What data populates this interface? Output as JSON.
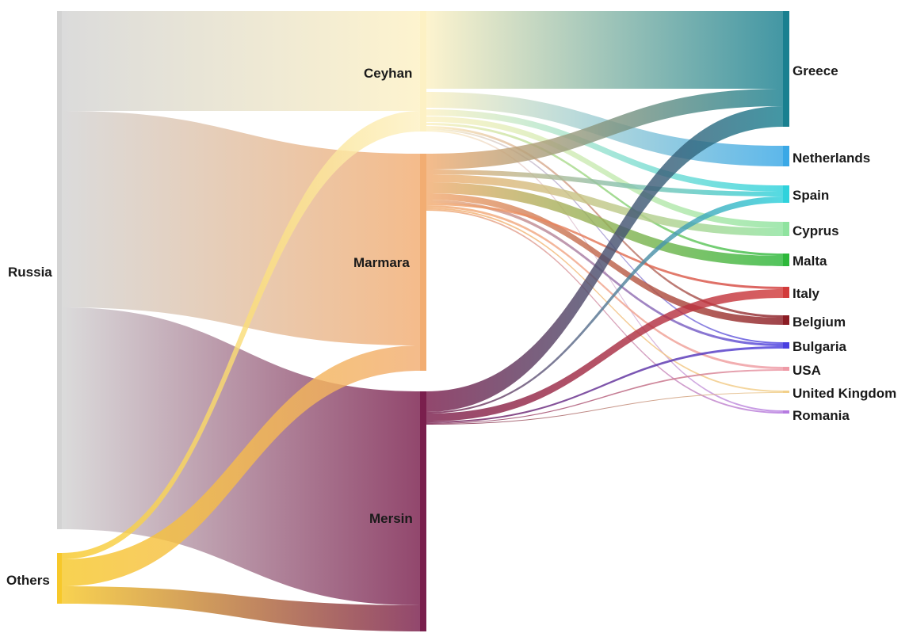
{
  "diagram": {
    "type": "sankey",
    "nodes": {
      "sources": [
        {
          "id": "russia",
          "label": "Russia",
          "color": "#d3d3d3"
        },
        {
          "id": "others",
          "label": "Others",
          "color": "#f7c82a"
        }
      ],
      "ports": [
        {
          "id": "ceyhan",
          "label": "Ceyhan",
          "color": "#fdf1c4"
        },
        {
          "id": "marmara",
          "label": "Marmara",
          "color": "#f2ad72"
        },
        {
          "id": "mersin",
          "label": "Mersin",
          "color": "#7a1f4d"
        }
      ],
      "destinations": [
        {
          "id": "greece",
          "label": "Greece",
          "color": "#1a8090"
        },
        {
          "id": "netherlands",
          "label": "Netherlands",
          "color": "#3aa8e6"
        },
        {
          "id": "spain",
          "label": "Spain",
          "color": "#2fd2dc"
        },
        {
          "id": "cyprus",
          "label": "Cyprus",
          "color": "#8fe39f"
        },
        {
          "id": "malta",
          "label": "Malta",
          "color": "#2db83a"
        },
        {
          "id": "italy",
          "label": "Italy",
          "color": "#d23b3b"
        },
        {
          "id": "belgium",
          "label": "Belgium",
          "color": "#8b1c24"
        },
        {
          "id": "bulgaria",
          "label": "Bulgaria",
          "color": "#4a3fe0"
        },
        {
          "id": "usa",
          "label": "USA",
          "color": "#ee9aa6"
        },
        {
          "id": "united_kingdom",
          "label": "United Kingdom",
          "color": "#f2d08a"
        },
        {
          "id": "romania",
          "label": "Romania",
          "color": "#b57ae0"
        }
      ]
    }
  }
}
